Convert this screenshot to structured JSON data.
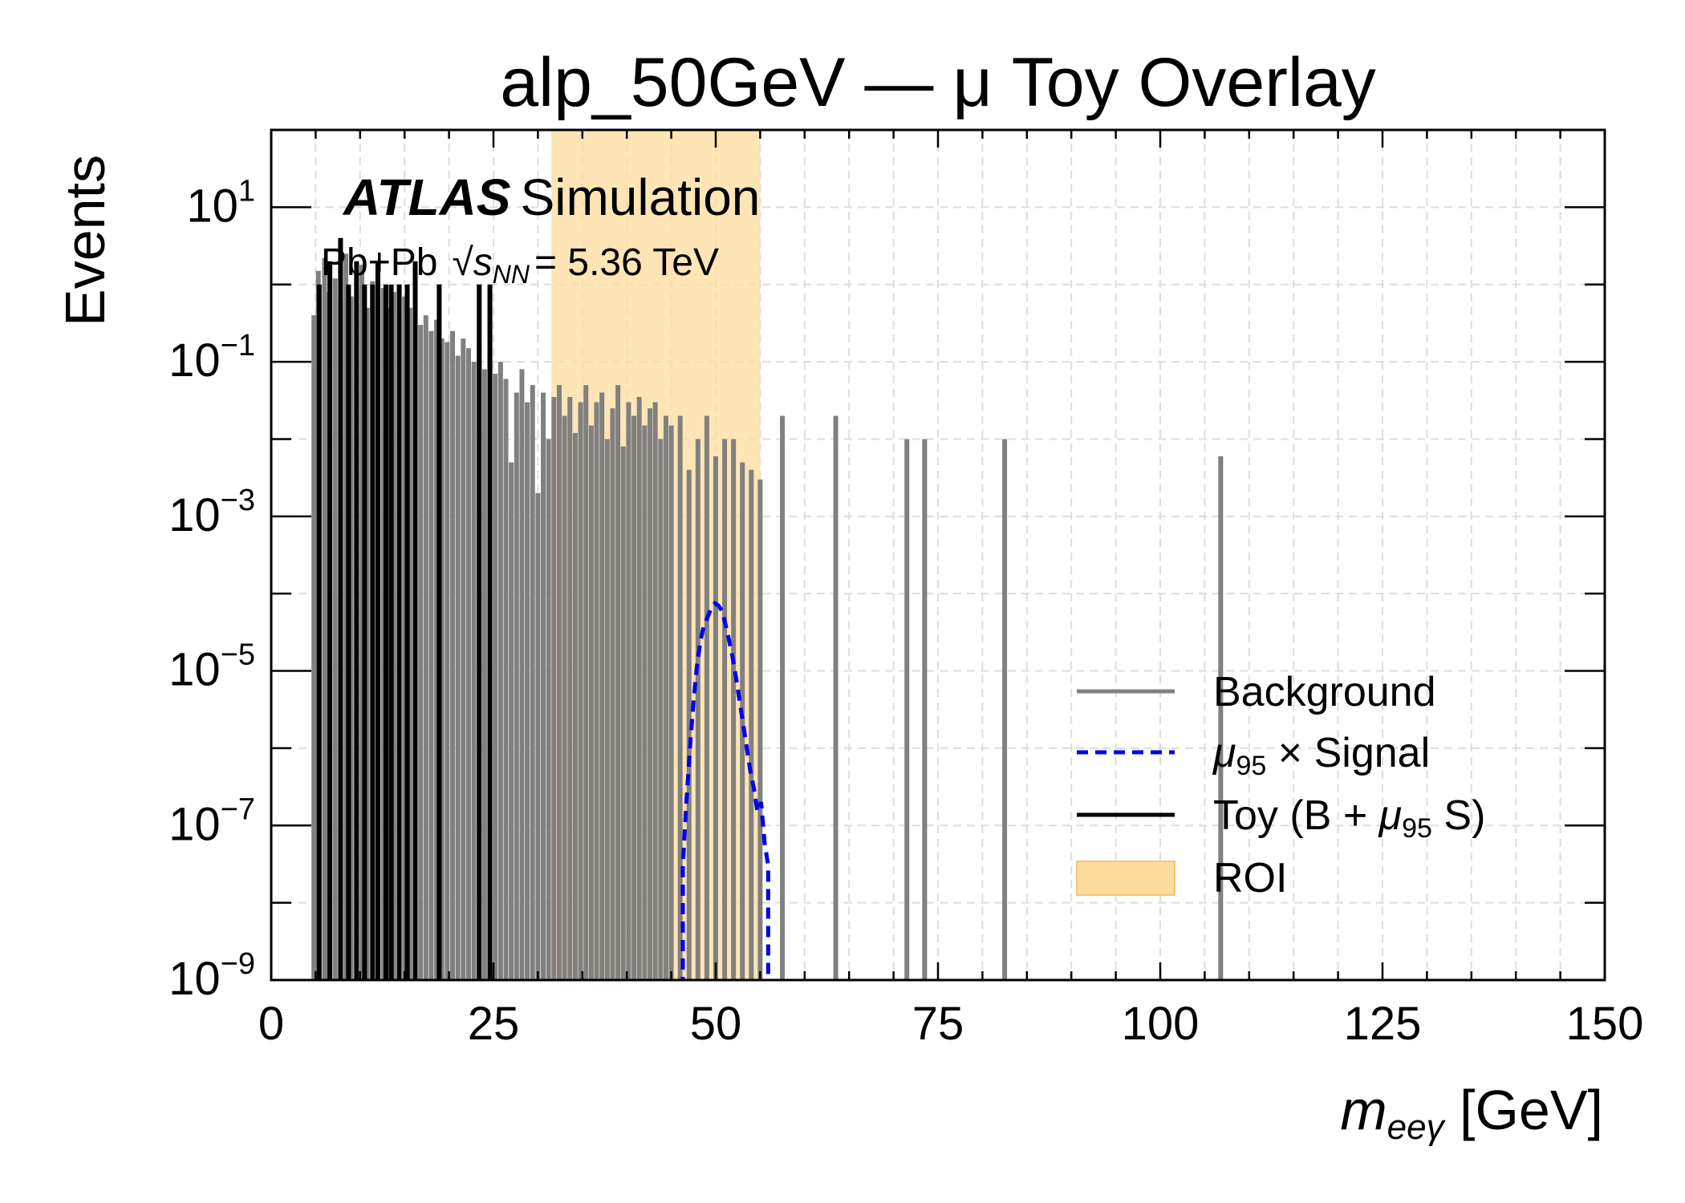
{
  "chart_data": {
    "type": "line",
    "title": "alp_50GeV — μ   Toy Overlay",
    "xlabel": "m_eeγ [GeV]",
    "ylabel": "Events",
    "xlim": [
      0,
      150
    ],
    "ylim": [
      1e-09,
      100
    ],
    "yscale": "log",
    "grid": true,
    "legend_position": "lower-right",
    "x_ticks": [
      "0",
      "25",
      "50",
      "75",
      "100",
      "125",
      "150"
    ],
    "y_ticks": [
      {
        "base": "10",
        "exp": "1"
      },
      {
        "base": "10",
        "exp": "−1"
      },
      {
        "base": "10",
        "exp": "−3"
      },
      {
        "base": "10",
        "exp": "−5"
      },
      {
        "base": "10",
        "exp": "−7"
      },
      {
        "base": "10",
        "exp": "−9"
      }
    ],
    "annotation": {
      "experiment": "ATLAS",
      "label": "Simulation",
      "collision": "Pb+Pb",
      "energy_symbol": "s",
      "energy_subscript": "NN",
      "energy_value": "= 5.36 TeV"
    },
    "roi": {
      "x_min": 31.5,
      "x_max": 55.0,
      "label": "ROI"
    },
    "series": [
      {
        "name": "Background",
        "legend_label": "Background",
        "color": "#808080",
        "style": "solid",
        "points": [
          [
            4.8,
            0.4
          ],
          [
            5.3,
            1.5
          ],
          [
            6.0,
            2.2
          ],
          [
            6.5,
            0.8
          ],
          [
            7.2,
            1.2
          ],
          [
            7.8,
            0.6
          ],
          [
            8.4,
            2.5
          ],
          [
            9.0,
            0.7
          ],
          [
            9.6,
            0.9
          ],
          [
            10.2,
            1.8
          ],
          [
            10.8,
            0.5
          ],
          [
            11.4,
            1.1
          ],
          [
            12.0,
            0.6
          ],
          [
            12.6,
            0.9
          ],
          [
            13.2,
            0.5
          ],
          [
            13.8,
            0.8
          ],
          [
            14.4,
            0.4
          ],
          [
            15.0,
            0.7
          ],
          [
            15.6,
            0.5
          ],
          [
            16.2,
            0.45
          ],
          [
            16.8,
            0.3
          ],
          [
            17.4,
            0.4
          ],
          [
            18.0,
            0.25
          ],
          [
            18.6,
            0.35
          ],
          [
            19.2,
            0.2
          ],
          [
            19.8,
            0.18
          ],
          [
            20.4,
            0.25
          ],
          [
            21.0,
            0.12
          ],
          [
            21.6,
            0.2
          ],
          [
            22.2,
            0.15
          ],
          [
            22.8,
            0.1
          ],
          [
            23.4,
            0.18
          ],
          [
            24.0,
            0.08
          ],
          [
            24.6,
            0.12
          ],
          [
            25.2,
            0.07
          ],
          [
            25.8,
            0.1
          ],
          [
            26.4,
            0.06
          ],
          [
            27.0,
            0.005
          ],
          [
            27.6,
            0.04
          ],
          [
            28.2,
            0.08
          ],
          [
            28.8,
            0.03
          ],
          [
            29.4,
            0.05
          ],
          [
            30.0,
            0.002
          ],
          [
            30.6,
            0.04
          ],
          [
            31.2,
            0.01
          ],
          [
            31.8,
            0.035
          ],
          [
            32.4,
            0.05
          ],
          [
            33.0,
            0.02
          ],
          [
            33.6,
            0.035
          ],
          [
            34.2,
            0.012
          ],
          [
            34.8,
            0.03
          ],
          [
            35.4,
            0.05
          ],
          [
            36.0,
            0.015
          ],
          [
            36.6,
            0.03
          ],
          [
            37.2,
            0.04
          ],
          [
            37.8,
            0.01
          ],
          [
            38.4,
            0.025
          ],
          [
            39.0,
            0.05
          ],
          [
            39.6,
            0.008
          ],
          [
            40.2,
            0.03
          ],
          [
            40.8,
            0.02
          ],
          [
            41.4,
            0.035
          ],
          [
            42.0,
            0.015
          ],
          [
            42.6,
            0.025
          ],
          [
            43.2,
            0.03
          ],
          [
            43.8,
            0.01
          ],
          [
            44.4,
            0.02
          ],
          [
            45.0,
            0.015
          ],
          [
            46.0,
            0.02
          ],
          [
            47.0,
            0.004
          ],
          [
            48.0,
            0.01
          ],
          [
            49.0,
            0.02
          ],
          [
            50.0,
            0.006
          ],
          [
            51.0,
            0.01
          ],
          [
            52.0,
            0.01
          ],
          [
            53.0,
            0.005
          ],
          [
            54.0,
            0.004
          ],
          [
            55.0,
            0.003
          ],
          [
            57.5,
            0.02
          ],
          [
            63.5,
            0.02
          ],
          [
            71.5,
            0.01
          ],
          [
            73.5,
            0.01
          ],
          [
            82.5,
            0.01
          ],
          [
            106.8,
            0.006
          ]
        ]
      },
      {
        "name": "μ95 × Signal",
        "legend_label": {
          "mu": "μ",
          "sub": "95",
          "rest": " ×  Signal"
        },
        "color": "#0000ee",
        "style": "dashed",
        "points": [
          [
            46.3,
            3e-08
          ],
          [
            46.7,
            2e-07
          ],
          [
            47.1,
            1e-06
          ],
          [
            47.5,
            4e-06
          ],
          [
            47.9,
            1.2e-05
          ],
          [
            48.3,
            2.5e-05
          ],
          [
            48.7,
            4e-05
          ],
          [
            49.1,
            5e-05
          ],
          [
            49.5,
            6.5e-05
          ],
          [
            49.9,
            7.5e-05
          ],
          [
            50.3,
            7e-05
          ],
          [
            50.7,
            6e-05
          ],
          [
            51.1,
            4e-05
          ],
          [
            51.5,
            2.5e-05
          ],
          [
            51.9,
            1.5e-05
          ],
          [
            52.3,
            8e-06
          ],
          [
            52.7,
            4e-06
          ],
          [
            53.1,
            2e-06
          ],
          [
            53.5,
            1e-06
          ],
          [
            53.9,
            5e-07
          ],
          [
            54.3,
            3e-07
          ],
          [
            54.7,
            1.5e-07
          ],
          [
            55.1,
            2e-07
          ],
          [
            55.5,
            6e-08
          ],
          [
            55.9,
            3e-08
          ]
        ]
      },
      {
        "name": "Toy (B + μ95 S)",
        "legend_label": {
          "pre": "Toy (B + ",
          "mu": "μ",
          "sub": "95",
          "rest": " S)"
        },
        "color": "#000000",
        "style": "solid",
        "points": [
          [
            5.4,
            1
          ],
          [
            6.6,
            2
          ],
          [
            7.8,
            4
          ],
          [
            8.7,
            1
          ],
          [
            9.6,
            2
          ],
          [
            10.5,
            1
          ],
          [
            11.4,
            1
          ],
          [
            12.0,
            2
          ],
          [
            12.9,
            1
          ],
          [
            13.5,
            1
          ],
          [
            14.4,
            1
          ],
          [
            15.3,
            1
          ],
          [
            16.2,
            2
          ],
          [
            18.9,
            1
          ],
          [
            23.4,
            1
          ],
          [
            24.6,
            1
          ]
        ]
      },
      {
        "name": "ROI",
        "legend_label": "ROI",
        "color": "#fddc9c",
        "style": "patch"
      }
    ]
  }
}
